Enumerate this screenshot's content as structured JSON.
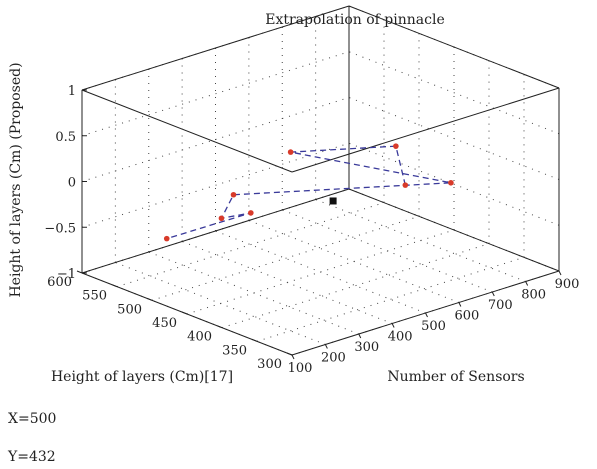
{
  "chart_data": {
    "type": "scatter",
    "title": "Extrapolation of pinnacle",
    "xlabel": "Number of Sensors",
    "ylabel": "Height of layers (Cm)[17]",
    "zlabel": "Height of layers (Cm) (Proposed)",
    "xlim": [
      100,
      900
    ],
    "ylim": [
      300,
      600
    ],
    "zlim": [
      -1,
      1
    ],
    "x_ticks": [
      "100",
      "200",
      "300",
      "400",
      "500",
      "600",
      "700",
      "800",
      "900"
    ],
    "y_ticks": [
      "300",
      "350",
      "400",
      "450",
      "500",
      "550",
      "600"
    ],
    "z_ticks": [
      "1",
      "0.5",
      "0",
      "−0.5",
      "−1"
    ],
    "grid": true,
    "series": [
      {
        "type": "line3d",
        "style": "dashed",
        "color": "#3a3a9a",
        "marker_color": "#d83a2a",
        "points": [
          {
            "x": 450,
            "y": 305,
            "z": 0.44
          },
          {
            "x": 600,
            "y": 390,
            "z": 0.44
          },
          {
            "x": 400,
            "y": 445,
            "z": 0.44
          },
          {
            "x": 660,
            "y": 340,
            "z": 0.12
          },
          {
            "x": 470,
            "y": 560,
            "z": -0.45
          },
          {
            "x": 350,
            "y": 520,
            "z": -0.45
          },
          {
            "x": 480,
            "y": 540,
            "z": -0.6
          },
          {
            "x": 270,
            "y": 560,
            "z": -0.7
          }
        ]
      },
      {
        "type": "point",
        "marker": "square",
        "color": "#111111",
        "points": [
          {
            "x": 500,
            "y": 432,
            "z": -0.17
          }
        ]
      }
    ]
  },
  "readout": {
    "x": "X=500",
    "y": "Y=432"
  }
}
